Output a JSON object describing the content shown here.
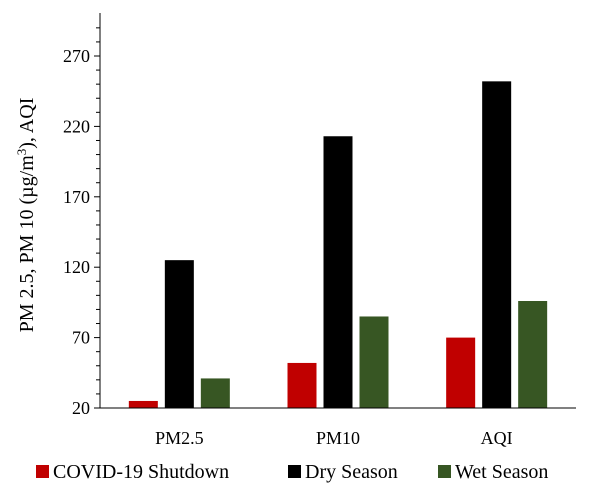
{
  "chart_data": {
    "type": "bar",
    "title": "",
    "xlabel": "",
    "ylabel": "PM 2.5, PM 10 (µg/m3), AQI",
    "ylabel_parts": {
      "before": "PM 2.5, PM 10 (µg/m",
      "superscript": "3",
      "after": "), AQI"
    },
    "categories": [
      "PM2.5",
      "PM10",
      "AQI"
    ],
    "ylim": [
      20,
      295
    ],
    "yticks": [
      20,
      70,
      120,
      170,
      220,
      270
    ],
    "grid": false,
    "legend_position": "bottom",
    "series": [
      {
        "name": "COVID-19 Shutdown",
        "color": "#c00000",
        "values": [
          25,
          52,
          70
        ]
      },
      {
        "name": "Dry Season",
        "color": "#000000",
        "values": [
          125,
          213,
          252
        ]
      },
      {
        "name": "Wet Season",
        "color": "#375623",
        "values": [
          41,
          85,
          96
        ]
      }
    ]
  }
}
